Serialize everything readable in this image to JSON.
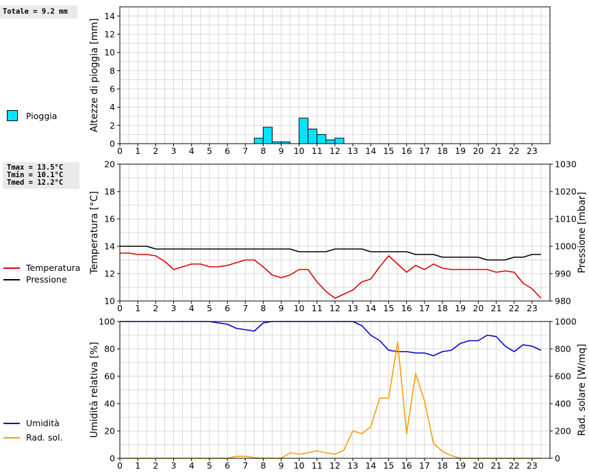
{
  "colors": {
    "rain": "#00e5ff",
    "temperature": "#dd0000",
    "pressure": "#000000",
    "humidity": "#0000c8",
    "radiation": "#f5a000",
    "grid": "#d8d8d8"
  },
  "stats": {
    "rain_total": "Totale = 9.2 mm",
    "tmax": "Tmax = 13.5°C",
    "tmin": "Tmin = 10.1°C",
    "tmed": "Tmed = 12.2°C"
  },
  "legend": {
    "rain": "Pioggia",
    "temperature": "Temperatura",
    "pressure": "Pressione",
    "humidity": "Umidità",
    "radiation": "Rad. sol."
  },
  "chart_data": [
    {
      "type": "bar",
      "name": "rain",
      "ylabel": "Altezze di pioggia [mm]",
      "ylim": [
        0,
        15
      ],
      "yticks": [
        0,
        2,
        4,
        6,
        8,
        10,
        12,
        14
      ],
      "xlim": [
        0,
        24
      ],
      "xticks": [
        "0",
        "1",
        "2",
        "3",
        "4",
        "5",
        "6",
        "7",
        "8",
        "9",
        "10",
        "11",
        "12",
        "13",
        "14",
        "15",
        "16",
        "17",
        "18",
        "19",
        "20",
        "21",
        "22",
        "23"
      ],
      "bin_width_h": 0.5,
      "bars": [
        {
          "x": 7.5,
          "value": 0.6
        },
        {
          "x": 8.0,
          "value": 1.8
        },
        {
          "x": 8.5,
          "value": 0.2
        },
        {
          "x": 9.0,
          "value": 0.2
        },
        {
          "x": 10.0,
          "value": 2.8
        },
        {
          "x": 10.5,
          "value": 1.6
        },
        {
          "x": 11.0,
          "value": 1.0
        },
        {
          "x": 11.5,
          "value": 0.4
        },
        {
          "x": 12.0,
          "value": 0.6
        }
      ]
    },
    {
      "type": "line",
      "name": "temperature-pressure",
      "ylabel": "Temperatura [°C]",
      "y2label": "Pressione [mbar]",
      "ylim": [
        10,
        20
      ],
      "y2lim": [
        980,
        1030
      ],
      "yticks": [
        10,
        12,
        14,
        16,
        18,
        20
      ],
      "y2ticks": [
        980,
        990,
        1000,
        1010,
        1020,
        1030
      ],
      "xlim": [
        0,
        24
      ],
      "xticks": [
        "0",
        "1",
        "2",
        "3",
        "4",
        "5",
        "6",
        "7",
        "8",
        "9",
        "10",
        "11",
        "12",
        "13",
        "14",
        "15",
        "16",
        "17",
        "18",
        "19",
        "20",
        "21",
        "22",
        "23"
      ],
      "series": [
        {
          "name": "Temperatura",
          "axis": "left",
          "x": [
            0,
            0.5,
            1,
            1.5,
            2,
            2.5,
            3,
            3.5,
            4,
            4.5,
            5,
            5.5,
            6,
            6.5,
            7,
            7.5,
            8,
            8.5,
            9,
            9.5,
            10,
            10.5,
            11,
            11.5,
            12,
            12.5,
            13,
            13.5,
            14,
            14.5,
            15,
            15.5,
            16,
            16.5,
            17,
            17.5,
            18,
            18.5,
            19,
            19.5,
            20,
            20.5,
            21,
            21.5,
            22,
            22.5,
            23,
            23.5
          ],
          "y": [
            13.5,
            13.5,
            13.4,
            13.4,
            13.3,
            12.9,
            12.3,
            12.5,
            12.7,
            12.7,
            12.5,
            12.5,
            12.6,
            12.8,
            13.0,
            13.0,
            12.5,
            11.9,
            11.7,
            11.9,
            12.3,
            12.3,
            11.4,
            10.7,
            10.2,
            10.5,
            10.8,
            11.4,
            11.6,
            12.5,
            13.3,
            12.7,
            12.1,
            12.6,
            12.3,
            12.7,
            12.4,
            12.3,
            12.3,
            12.3,
            12.3,
            12.3,
            12.1,
            12.2,
            12.1,
            11.3,
            10.9,
            10.2
          ]
        },
        {
          "name": "Pressione",
          "axis": "right",
          "x": [
            0,
            0.5,
            1,
            1.5,
            2,
            2.5,
            3,
            3.5,
            4,
            4.5,
            5,
            5.5,
            6,
            6.5,
            7,
            7.5,
            8,
            8.5,
            9,
            9.5,
            10,
            10.5,
            11,
            11.5,
            12,
            12.5,
            13,
            13.5,
            14,
            14.5,
            15,
            15.5,
            16,
            16.5,
            17,
            17.5,
            18,
            18.5,
            19,
            19.5,
            20,
            20.5,
            21,
            21.5,
            22,
            22.5,
            23,
            23.5
          ],
          "y": [
            1000,
            1000,
            1000,
            1000,
            999,
            999,
            999,
            999,
            999,
            999,
            999,
            999,
            999,
            999,
            999,
            999,
            999,
            999,
            999,
            999,
            998,
            998,
            998,
            998,
            999,
            999,
            999,
            999,
            998,
            998,
            998,
            998,
            998,
            997,
            997,
            997,
            996,
            996,
            996,
            996,
            996,
            995,
            995,
            995,
            996,
            996,
            997,
            997
          ]
        }
      ]
    },
    {
      "type": "line",
      "name": "humidity-radiation",
      "ylabel": "Umidità relativa [%]",
      "y2label": "Rad. solare [W/mq]",
      "ylim": [
        0,
        100
      ],
      "y2lim": [
        0,
        1000
      ],
      "yticks": [
        0,
        20,
        40,
        60,
        80,
        100
      ],
      "y2ticks": [
        0,
        200,
        400,
        600,
        800,
        1000
      ],
      "xlim": [
        0,
        24
      ],
      "xticks": [
        "0",
        "1",
        "2",
        "3",
        "4",
        "5",
        "6",
        "7",
        "8",
        "9",
        "10",
        "11",
        "12",
        "13",
        "14",
        "15",
        "16",
        "17",
        "18",
        "19",
        "20",
        "21",
        "22",
        "23"
      ],
      "series": [
        {
          "name": "Umidità",
          "axis": "left",
          "x": [
            0,
            0.5,
            1,
            1.5,
            2,
            2.5,
            3,
            3.5,
            4,
            4.5,
            5,
            5.5,
            6,
            6.5,
            7,
            7.5,
            8,
            8.5,
            9,
            9.5,
            10,
            10.5,
            11,
            11.5,
            12,
            12.5,
            13,
            13.5,
            14,
            14.5,
            15,
            15.5,
            16,
            16.5,
            17,
            17.5,
            18,
            18.5,
            19,
            19.5,
            20,
            20.5,
            21,
            21.5,
            22,
            22.5,
            23,
            23.5
          ],
          "y": [
            100,
            100,
            100,
            100,
            100,
            100,
            100,
            100,
            100,
            100,
            100,
            99,
            98,
            95,
            94,
            93,
            99,
            100,
            100,
            100,
            100,
            100,
            100,
            100,
            100,
            100,
            100,
            97,
            90,
            86,
            79,
            78,
            78,
            77,
            77,
            75,
            78,
            79,
            84,
            86,
            86,
            90,
            89,
            82,
            78,
            83,
            82,
            79
          ]
        },
        {
          "name": "Rad. sol.",
          "axis": "right",
          "x": [
            0,
            0.5,
            1,
            1.5,
            2,
            2.5,
            3,
            3.5,
            4,
            4.5,
            5,
            5.5,
            6,
            6.5,
            7,
            7.5,
            8,
            8.5,
            9,
            9.5,
            10,
            10.5,
            11,
            11.5,
            12,
            12.5,
            13,
            13.5,
            14,
            14.5,
            15,
            15.5,
            16,
            16.5,
            17,
            17.5,
            18,
            18.5,
            19,
            19.5,
            20,
            20.5,
            21,
            21.5,
            22,
            22.5,
            23,
            23.5
          ],
          "y": [
            0,
            0,
            0,
            0,
            0,
            0,
            0,
            0,
            0,
            0,
            0,
            0,
            0,
            15,
            15,
            5,
            0,
            0,
            0,
            40,
            30,
            40,
            55,
            40,
            30,
            60,
            200,
            180,
            230,
            440,
            440,
            850,
            180,
            620,
            420,
            110,
            50,
            20,
            0,
            0,
            0,
            0,
            0,
            0,
            0,
            0,
            0,
            0
          ]
        }
      ]
    }
  ]
}
